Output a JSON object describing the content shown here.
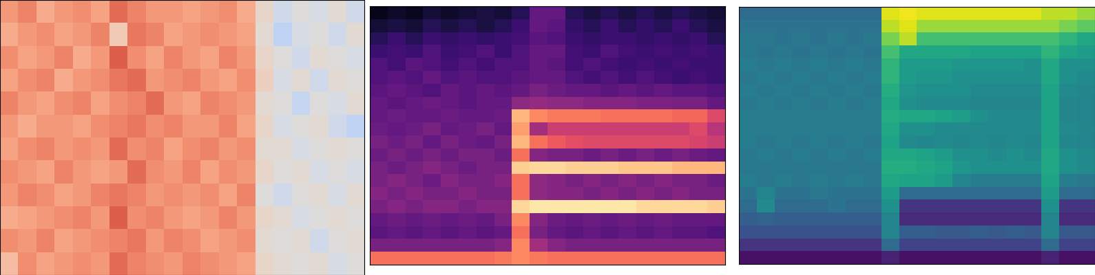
{
  "chart_data": [
    {
      "type": "heatmap",
      "color": "coolwarm",
      "range": [
        -1,
        1
      ],
      "tick_labels": false,
      "cells": [
        [
          0.5,
          0.6,
          0.4,
          0.5,
          0.55,
          0.45,
          0.7,
          0.6,
          0.5,
          0.5,
          0.45,
          0.5,
          0.55,
          0.4,
          0.1,
          -0.1,
          0.0,
          -0.05,
          0.05,
          -0.1
        ],
        [
          0.4,
          0.5,
          0.55,
          0.45,
          0.5,
          0.6,
          0.2,
          0.65,
          0.6,
          0.45,
          0.5,
          0.55,
          0.5,
          0.45,
          0.05,
          -0.2,
          -0.05,
          0.0,
          -0.1,
          0.05
        ],
        [
          0.55,
          0.45,
          0.5,
          0.6,
          0.4,
          0.5,
          0.75,
          0.55,
          0.45,
          0.6,
          0.5,
          0.45,
          0.6,
          0.5,
          0.1,
          0.0,
          -0.1,
          0.05,
          0.0,
          -0.05
        ],
        [
          0.45,
          0.55,
          0.6,
          0.4,
          0.5,
          0.55,
          0.65,
          0.7,
          0.5,
          0.55,
          0.6,
          0.5,
          0.45,
          0.55,
          0.15,
          -0.05,
          0.05,
          -0.1,
          0.05,
          0.0
        ],
        [
          0.6,
          0.5,
          0.45,
          0.55,
          0.6,
          0.45,
          0.55,
          0.6,
          0.7,
          0.5,
          0.45,
          0.6,
          0.55,
          0.5,
          0.05,
          0.0,
          -0.15,
          0.0,
          -0.05,
          0.05
        ],
        [
          0.5,
          0.4,
          0.5,
          0.5,
          0.45,
          0.55,
          0.6,
          0.65,
          0.55,
          0.6,
          0.5,
          0.5,
          0.6,
          0.45,
          0.1,
          -0.05,
          0.0,
          0.05,
          -0.1,
          -0.2
        ],
        [
          0.45,
          0.55,
          0.6,
          0.5,
          0.55,
          0.5,
          0.7,
          0.55,
          0.6,
          0.45,
          0.55,
          0.6,
          0.5,
          0.55,
          0.05,
          0.05,
          -0.05,
          0.0,
          0.05,
          0.0
        ],
        [
          0.55,
          0.5,
          0.45,
          0.6,
          0.5,
          0.45,
          0.5,
          0.7,
          0.55,
          0.5,
          0.6,
          0.45,
          0.55,
          0.5,
          0.1,
          0.0,
          0.05,
          -0.05,
          0.0,
          -0.05
        ],
        [
          0.5,
          0.6,
          0.55,
          0.45,
          0.5,
          0.6,
          0.65,
          0.6,
          0.5,
          0.55,
          0.5,
          0.55,
          0.45,
          0.6,
          0.0,
          -0.1,
          0.0,
          0.05,
          -0.05,
          0.05
        ],
        [
          0.4,
          0.45,
          0.5,
          0.55,
          0.6,
          0.5,
          0.75,
          0.55,
          0.6,
          0.5,
          0.45,
          0.5,
          0.6,
          0.5,
          0.1,
          0.05,
          -0.05,
          0.0,
          0.05,
          0.0
        ],
        [
          0.55,
          0.5,
          0.6,
          0.45,
          0.5,
          0.55,
          0.6,
          0.65,
          0.5,
          0.6,
          0.55,
          0.45,
          0.5,
          0.55,
          0.05,
          0.0,
          0.05,
          -0.1,
          0.0,
          0.05
        ],
        [
          0.3,
          0.55,
          0.45,
          0.5,
          0.55,
          0.5,
          0.7,
          0.6,
          0.55,
          0.5,
          0.6,
          0.55,
          0.5,
          0.45,
          0.1,
          0.05,
          0.0,
          0.05,
          -0.05,
          0.0
        ]
      ]
    },
    {
      "type": "heatmap",
      "color": "magma",
      "range": [
        0,
        1
      ],
      "tick_labels": false,
      "cells": [
        [
          0.05,
          0.08,
          0.06,
          0.1,
          0.08,
          0.1,
          0.12,
          0.1,
          0.15,
          0.3,
          0.3,
          0.15,
          0.12,
          0.15,
          0.12,
          0.15,
          0.12,
          0.15,
          0.12,
          0.1
        ],
        [
          0.1,
          0.12,
          0.1,
          0.15,
          0.12,
          0.15,
          0.12,
          0.15,
          0.2,
          0.3,
          0.28,
          0.18,
          0.15,
          0.2,
          0.15,
          0.18,
          0.15,
          0.2,
          0.15,
          0.12
        ],
        [
          0.15,
          0.2,
          0.15,
          0.2,
          0.18,
          0.2,
          0.18,
          0.2,
          0.22,
          0.28,
          0.25,
          0.2,
          0.18,
          0.2,
          0.2,
          0.18,
          0.2,
          0.18,
          0.2,
          0.15
        ],
        [
          0.2,
          0.22,
          0.2,
          0.25,
          0.2,
          0.22,
          0.25,
          0.2,
          0.25,
          0.3,
          0.3,
          0.22,
          0.2,
          0.25,
          0.22,
          0.2,
          0.22,
          0.2,
          0.22,
          0.2
        ],
        [
          0.25,
          0.22,
          0.28,
          0.25,
          0.22,
          0.25,
          0.22,
          0.25,
          0.25,
          0.3,
          0.28,
          0.22,
          0.25,
          0.22,
          0.2,
          0.22,
          0.2,
          0.22,
          0.2,
          0.2
        ],
        [
          0.25,
          0.28,
          0.25,
          0.3,
          0.25,
          0.28,
          0.25,
          0.25,
          0.28,
          0.3,
          0.3,
          0.25,
          0.22,
          0.25,
          0.22,
          0.25,
          0.22,
          0.2,
          0.22,
          0.2
        ],
        [
          0.28,
          0.3,
          0.28,
          0.25,
          0.3,
          0.28,
          0.3,
          0.28,
          0.3,
          0.35,
          0.32,
          0.3,
          0.3,
          0.28,
          0.3,
          0.28,
          0.3,
          0.28,
          0.28,
          0.25
        ],
        [
          0.3,
          0.28,
          0.3,
          0.32,
          0.3,
          0.28,
          0.3,
          0.3,
          0.4,
          0.42,
          0.4,
          0.4,
          0.38,
          0.38,
          0.38,
          0.36,
          0.36,
          0.35,
          0.35,
          0.3
        ],
        [
          0.3,
          0.32,
          0.3,
          0.3,
          0.32,
          0.3,
          0.3,
          0.32,
          0.85,
          0.75,
          0.72,
          0.72,
          0.72,
          0.7,
          0.7,
          0.7,
          0.7,
          0.68,
          0.68,
          0.6
        ],
        [
          0.32,
          0.3,
          0.32,
          0.35,
          0.3,
          0.32,
          0.35,
          0.3,
          0.8,
          0.45,
          0.55,
          0.55,
          0.55,
          0.55,
          0.55,
          0.55,
          0.55,
          0.55,
          0.6,
          0.5
        ],
        [
          0.35,
          0.32,
          0.35,
          0.3,
          0.35,
          0.32,
          0.3,
          0.35,
          0.85,
          0.7,
          0.65,
          0.62,
          0.6,
          0.6,
          0.6,
          0.6,
          0.6,
          0.6,
          0.58,
          0.55
        ],
        [
          0.32,
          0.35,
          0.32,
          0.35,
          0.32,
          0.35,
          0.35,
          0.32,
          0.7,
          0.38,
          0.35,
          0.35,
          0.32,
          0.35,
          0.32,
          0.35,
          0.32,
          0.35,
          0.32,
          0.3
        ],
        [
          0.35,
          0.32,
          0.35,
          0.38,
          0.35,
          0.32,
          0.35,
          0.35,
          0.9,
          0.92,
          0.92,
          0.9,
          0.9,
          0.9,
          0.88,
          0.88,
          0.88,
          0.85,
          0.85,
          0.85
        ],
        [
          0.35,
          0.38,
          0.35,
          0.32,
          0.38,
          0.35,
          0.35,
          0.38,
          0.7,
          0.4,
          0.38,
          0.35,
          0.38,
          0.35,
          0.38,
          0.35,
          0.38,
          0.35,
          0.35,
          0.32
        ],
        [
          0.38,
          0.35,
          0.38,
          0.35,
          0.35,
          0.38,
          0.35,
          0.35,
          0.7,
          0.4,
          0.38,
          0.38,
          0.35,
          0.38,
          0.35,
          0.38,
          0.35,
          0.38,
          0.35,
          0.35
        ],
        [
          0.35,
          0.38,
          0.35,
          0.38,
          0.38,
          0.35,
          0.38,
          0.38,
          0.92,
          0.95,
          0.95,
          0.95,
          0.95,
          0.95,
          0.95,
          0.92,
          0.92,
          0.92,
          0.92,
          0.9
        ],
        [
          0.3,
          0.32,
          0.3,
          0.32,
          0.3,
          0.32,
          0.3,
          0.35,
          0.75,
          0.38,
          0.32,
          0.3,
          0.32,
          0.3,
          0.32,
          0.3,
          0.32,
          0.3,
          0.3,
          0.3
        ],
        [
          0.28,
          0.3,
          0.28,
          0.3,
          0.28,
          0.3,
          0.28,
          0.3,
          0.7,
          0.35,
          0.3,
          0.28,
          0.3,
          0.28,
          0.3,
          0.28,
          0.3,
          0.28,
          0.28,
          0.25
        ],
        [
          0.35,
          0.35,
          0.35,
          0.35,
          0.35,
          0.35,
          0.35,
          0.38,
          0.75,
          0.45,
          0.38,
          0.35,
          0.35,
          0.35,
          0.35,
          0.35,
          0.35,
          0.35,
          0.35,
          0.35
        ],
        [
          0.7,
          0.7,
          0.7,
          0.7,
          0.7,
          0.7,
          0.7,
          0.72,
          0.75,
          0.72,
          0.7,
          0.7,
          0.7,
          0.7,
          0.7,
          0.7,
          0.7,
          0.7,
          0.7,
          0.7
        ]
      ]
    },
    {
      "type": "heatmap",
      "color": "viridis",
      "range": [
        0,
        1
      ],
      "tick_labels": false,
      "cells": [
        [
          0.35,
          0.35,
          0.35,
          0.35,
          0.35,
          0.35,
          0.35,
          0.35,
          0.95,
          0.98,
          0.95,
          0.95,
          0.95,
          0.95,
          0.95,
          0.95,
          0.95,
          0.9,
          0.9,
          0.85
        ],
        [
          0.38,
          0.38,
          0.38,
          0.38,
          0.38,
          0.38,
          0.38,
          0.38,
          0.9,
          0.95,
          0.85,
          0.85,
          0.85,
          0.85,
          0.85,
          0.85,
          0.85,
          0.85,
          0.8,
          0.75
        ],
        [
          0.4,
          0.4,
          0.38,
          0.4,
          0.38,
          0.4,
          0.38,
          0.4,
          0.8,
          0.9,
          0.7,
          0.7,
          0.7,
          0.7,
          0.7,
          0.7,
          0.7,
          0.7,
          0.65,
          0.6
        ],
        [
          0.4,
          0.38,
          0.4,
          0.38,
          0.4,
          0.38,
          0.4,
          0.38,
          0.7,
          0.6,
          0.6,
          0.6,
          0.6,
          0.58,
          0.58,
          0.58,
          0.58,
          0.65,
          0.58,
          0.55
        ],
        [
          0.42,
          0.4,
          0.42,
          0.4,
          0.42,
          0.4,
          0.42,
          0.4,
          0.65,
          0.55,
          0.55,
          0.55,
          0.52,
          0.52,
          0.52,
          0.52,
          0.5,
          0.6,
          0.5,
          0.5
        ],
        [
          0.4,
          0.42,
          0.4,
          0.42,
          0.4,
          0.42,
          0.4,
          0.42,
          0.65,
          0.55,
          0.52,
          0.52,
          0.5,
          0.5,
          0.5,
          0.5,
          0.5,
          0.6,
          0.5,
          0.48
        ],
        [
          0.42,
          0.4,
          0.42,
          0.4,
          0.42,
          0.4,
          0.42,
          0.4,
          0.62,
          0.52,
          0.5,
          0.5,
          0.5,
          0.48,
          0.48,
          0.48,
          0.48,
          0.58,
          0.48,
          0.46
        ],
        [
          0.4,
          0.42,
          0.4,
          0.42,
          0.4,
          0.42,
          0.4,
          0.42,
          0.6,
          0.5,
          0.48,
          0.48,
          0.48,
          0.46,
          0.46,
          0.46,
          0.46,
          0.58,
          0.46,
          0.45
        ],
        [
          0.42,
          0.42,
          0.42,
          0.42,
          0.42,
          0.42,
          0.42,
          0.42,
          0.62,
          0.6,
          0.6,
          0.58,
          0.56,
          0.5,
          0.48,
          0.48,
          0.48,
          0.58,
          0.46,
          0.45
        ],
        [
          0.42,
          0.42,
          0.42,
          0.42,
          0.42,
          0.42,
          0.42,
          0.42,
          0.6,
          0.5,
          0.5,
          0.48,
          0.48,
          0.48,
          0.48,
          0.48,
          0.48,
          0.58,
          0.48,
          0.46
        ],
        [
          0.42,
          0.4,
          0.42,
          0.4,
          0.42,
          0.4,
          0.42,
          0.4,
          0.58,
          0.48,
          0.46,
          0.48,
          0.46,
          0.48,
          0.46,
          0.48,
          0.46,
          0.58,
          0.46,
          0.45
        ],
        [
          0.4,
          0.42,
          0.4,
          0.42,
          0.4,
          0.42,
          0.4,
          0.42,
          0.6,
          0.6,
          0.58,
          0.55,
          0.5,
          0.5,
          0.48,
          0.5,
          0.48,
          0.6,
          0.5,
          0.48
        ],
        [
          0.4,
          0.4,
          0.4,
          0.4,
          0.4,
          0.4,
          0.4,
          0.4,
          0.62,
          0.62,
          0.6,
          0.58,
          0.52,
          0.5,
          0.5,
          0.5,
          0.5,
          0.6,
          0.5,
          0.48
        ],
        [
          0.42,
          0.4,
          0.42,
          0.4,
          0.42,
          0.4,
          0.42,
          0.4,
          0.6,
          0.58,
          0.58,
          0.55,
          0.45,
          0.42,
          0.42,
          0.42,
          0.42,
          0.58,
          0.42,
          0.4
        ],
        [
          0.38,
          0.45,
          0.38,
          0.38,
          0.4,
          0.38,
          0.38,
          0.38,
          0.55,
          0.35,
          0.35,
          0.35,
          0.35,
          0.35,
          0.35,
          0.35,
          0.35,
          0.55,
          0.35,
          0.35
        ],
        [
          0.35,
          0.48,
          0.35,
          0.35,
          0.35,
          0.38,
          0.35,
          0.35,
          0.5,
          0.15,
          0.15,
          0.15,
          0.15,
          0.15,
          0.15,
          0.15,
          0.15,
          0.5,
          0.15,
          0.15
        ],
        [
          0.3,
          0.32,
          0.3,
          0.3,
          0.3,
          0.3,
          0.3,
          0.3,
          0.45,
          0.12,
          0.12,
          0.12,
          0.12,
          0.12,
          0.12,
          0.12,
          0.12,
          0.45,
          0.12,
          0.12
        ],
        [
          0.25,
          0.25,
          0.25,
          0.25,
          0.25,
          0.25,
          0.25,
          0.25,
          0.45,
          0.3,
          0.3,
          0.28,
          0.28,
          0.3,
          0.28,
          0.3,
          0.28,
          0.45,
          0.28,
          0.28
        ],
        [
          0.15,
          0.15,
          0.15,
          0.15,
          0.15,
          0.15,
          0.15,
          0.15,
          0.35,
          0.2,
          0.2,
          0.2,
          0.2,
          0.2,
          0.2,
          0.2,
          0.2,
          0.35,
          0.2,
          0.2
        ],
        [
          0.05,
          0.05,
          0.05,
          0.05,
          0.05,
          0.05,
          0.05,
          0.05,
          0.1,
          0.05,
          0.05,
          0.05,
          0.05,
          0.05,
          0.05,
          0.05,
          0.05,
          0.1,
          0.05,
          0.05
        ]
      ]
    }
  ]
}
